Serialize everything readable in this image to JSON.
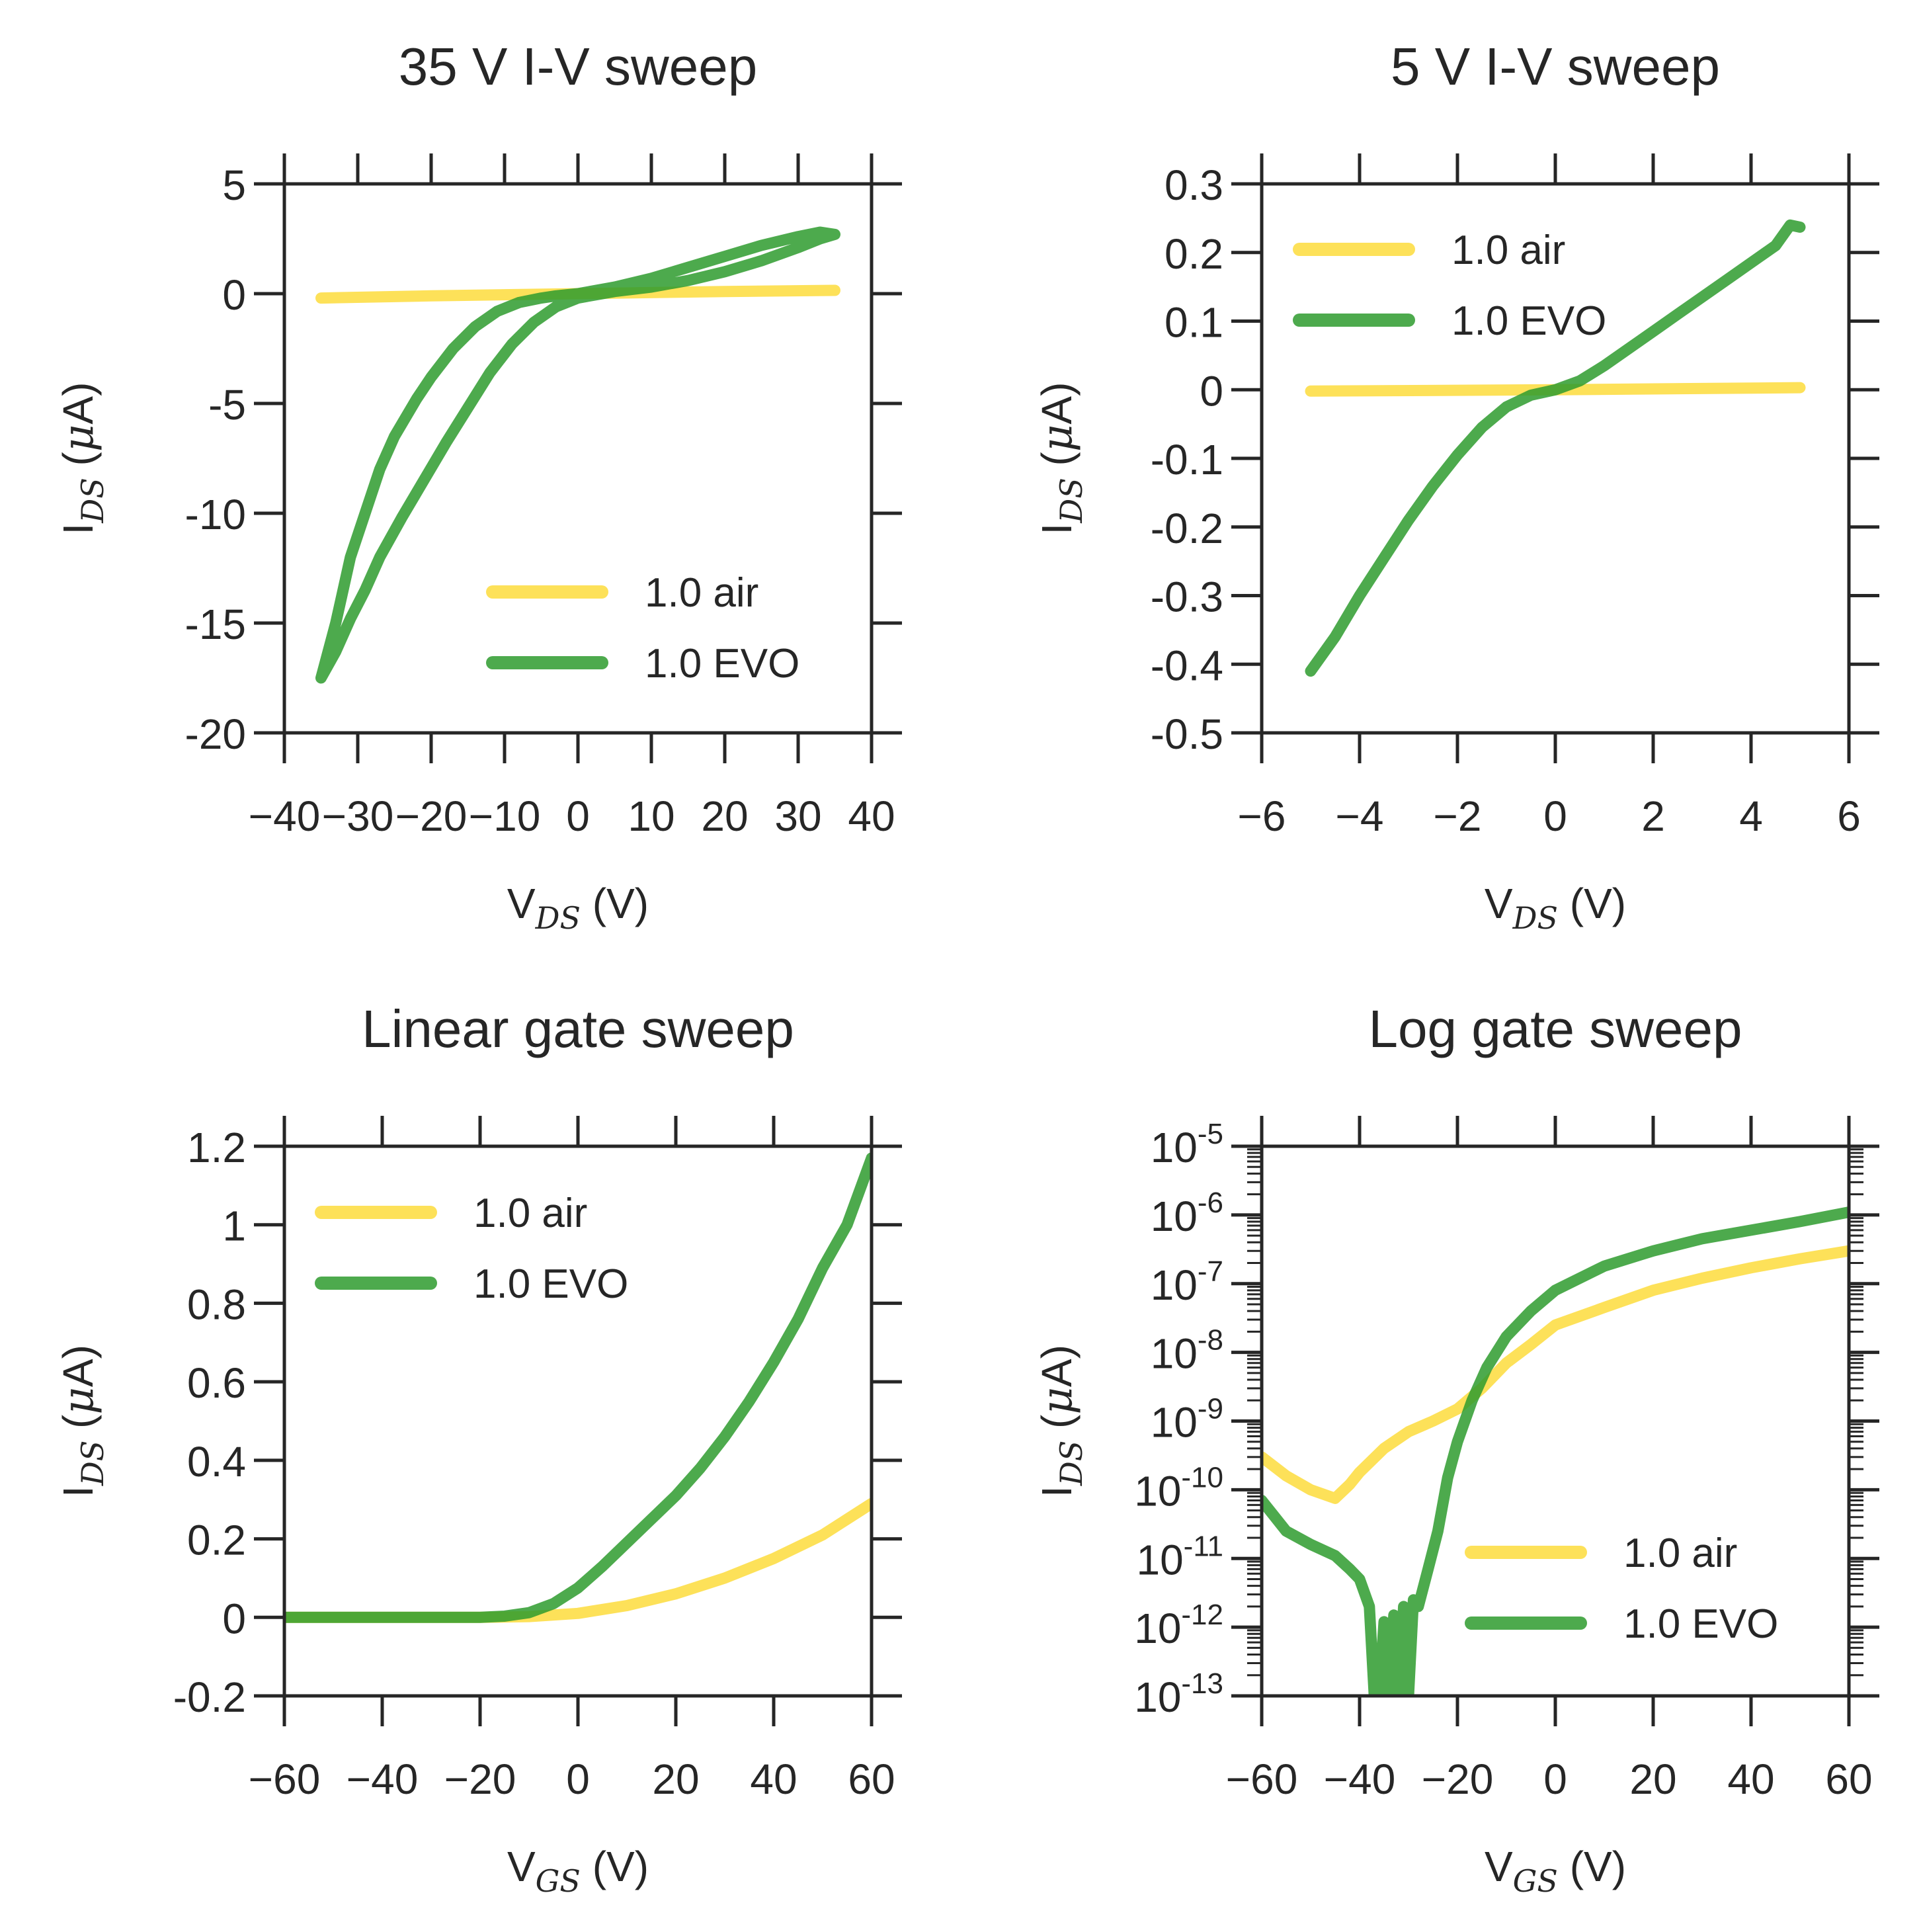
{
  "colors": {
    "air": "#fddc3c",
    "evo": "#2e9b2e",
    "axis": "#262626"
  },
  "chart_data": [
    {
      "type": "line",
      "title": "35 V I-V sweep",
      "xlabel": {
        "main": "V",
        "sub": "DS",
        "unit": " (V)"
      },
      "ylabel": {
        "main": "I",
        "sub": "DS",
        "unit_pre": " (",
        "unit_mu": "μ",
        "unit_post": "A)"
      },
      "xlim": [
        -40,
        40
      ],
      "ylim": [
        -20,
        5
      ],
      "yscale": "linear",
      "xticks": [
        -40,
        -30,
        -20,
        -10,
        0,
        10,
        20,
        30,
        40
      ],
      "xtick_labels": [
        "−40",
        "−30",
        "−20",
        "−10",
        "0",
        "10",
        "20",
        "30",
        "40"
      ],
      "yticks": [
        -20,
        -15,
        -10,
        -5,
        0,
        5
      ],
      "ytick_labels": [
        "-20",
        "-15",
        "-10",
        "-5",
        "0",
        "5"
      ],
      "legend_position": "lower-right",
      "series": [
        {
          "name": "1.0 air",
          "color_key": "air",
          "x": [
            -35,
            -20,
            0,
            20,
            35
          ],
          "y": [
            -0.2,
            -0.1,
            0,
            0.1,
            0.15
          ]
        },
        {
          "name": "1.0 EVO",
          "color_key": "evo",
          "x": [
            -35,
            -33,
            -31,
            -29,
            -27,
            -25,
            -22,
            -20,
            -17,
            -14,
            -11,
            -8,
            -5,
            -3,
            0,
            5,
            10,
            15,
            20,
            25,
            30,
            33,
            35,
            33,
            30,
            25,
            20,
            15,
            10,
            5,
            0,
            -3,
            -6,
            -9,
            -12,
            -15,
            -18,
            -21,
            -24,
            -27,
            -29,
            -31,
            -33,
            -35
          ],
          "y": [
            -17.5,
            -15,
            -12,
            -10,
            -8,
            -6.5,
            -4.8,
            -3.8,
            -2.5,
            -1.5,
            -0.8,
            -0.4,
            -0.2,
            -0.1,
            0,
            0.3,
            0.7,
            1.2,
            1.7,
            2.2,
            2.6,
            2.8,
            2.7,
            2.5,
            2.1,
            1.5,
            1.0,
            0.6,
            0.3,
            0.1,
            -0.2,
            -0.6,
            -1.3,
            -2.3,
            -3.6,
            -5.2,
            -6.8,
            -8.5,
            -10.2,
            -12,
            -13.5,
            -14.8,
            -16.3,
            -17.5
          ]
        }
      ]
    },
    {
      "type": "line",
      "title": "5 V I-V sweep",
      "xlabel": {
        "main": "V",
        "sub": "DS",
        "unit": " (V)"
      },
      "ylabel": {
        "main": "I",
        "sub": "DS",
        "unit_pre": " (",
        "unit_mu": "μ",
        "unit_post": "A)"
      },
      "xlim": [
        -6,
        6
      ],
      "ylim": [
        -0.5,
        0.3
      ],
      "yscale": "linear",
      "xticks": [
        -6,
        -4,
        -2,
        0,
        2,
        4,
        6
      ],
      "xtick_labels": [
        "−6",
        "−4",
        "−2",
        "0",
        "2",
        "4",
        "6"
      ],
      "yticks": [
        -0.5,
        -0.4,
        -0.3,
        -0.2,
        -0.1,
        0,
        0.1,
        0.2,
        0.3
      ],
      "ytick_labels": [
        "-0.5",
        "-0.4",
        "-0.3",
        "-0.2",
        "-0.1",
        "0",
        "0.1",
        "0.2",
        "0.3"
      ],
      "legend_position": "upper-left",
      "series": [
        {
          "name": "1.0 air",
          "color_key": "air",
          "x": [
            -5,
            0,
            5
          ],
          "y": [
            -0.002,
            0,
            0.003
          ]
        },
        {
          "name": "1.0 EVO",
          "color_key": "evo",
          "x": [
            -5,
            -4.5,
            -4,
            -3.5,
            -3,
            -2.5,
            -2,
            -1.5,
            -1,
            -0.5,
            0,
            0.5,
            1,
            1.5,
            2,
            2.5,
            3,
            3.5,
            4,
            4.5,
            4.8,
            5
          ],
          "y": [
            -0.41,
            -0.36,
            -0.3,
            -0.245,
            -0.19,
            -0.14,
            -0.095,
            -0.055,
            -0.025,
            -0.008,
            0,
            0.013,
            0.035,
            0.06,
            0.085,
            0.11,
            0.135,
            0.16,
            0.185,
            0.21,
            0.24,
            0.237
          ]
        }
      ]
    },
    {
      "type": "line",
      "title": "Linear gate sweep",
      "xlabel": {
        "main": "V",
        "sub": "GS",
        "unit": " (V)"
      },
      "ylabel": {
        "main": "I",
        "sub": "DS",
        "unit_pre": " (",
        "unit_mu": "μ",
        "unit_post": "A)"
      },
      "xlim": [
        -60,
        60
      ],
      "ylim": [
        -0.2,
        1.2
      ],
      "yscale": "linear",
      "xticks": [
        -60,
        -40,
        -20,
        0,
        20,
        40,
        60
      ],
      "xtick_labels": [
        "−60",
        "−40",
        "−20",
        "0",
        "20",
        "40",
        "60"
      ],
      "yticks": [
        -0.2,
        0,
        0.2,
        0.4,
        0.6,
        0.8,
        1,
        1.2
      ],
      "ytick_labels": [
        "-0.2",
        "0",
        "0.2",
        "0.4",
        "0.6",
        "0.8",
        "1",
        "1.2"
      ],
      "legend_position": "upper-left",
      "series": [
        {
          "name": "1.0 air",
          "color_key": "air",
          "x": [
            -60,
            -20,
            -10,
            0,
            10,
            20,
            30,
            40,
            50,
            60
          ],
          "y": [
            0,
            0,
            0.002,
            0.01,
            0.03,
            0.06,
            0.1,
            0.15,
            0.21,
            0.29
          ]
        },
        {
          "name": "1.0 EVO",
          "color_key": "evo",
          "x": [
            -60,
            -20,
            -15,
            -10,
            -5,
            0,
            5,
            10,
            15,
            20,
            25,
            30,
            35,
            40,
            45,
            50,
            55,
            60
          ],
          "y": [
            0,
            0,
            0.003,
            0.012,
            0.035,
            0.075,
            0.13,
            0.19,
            0.25,
            0.31,
            0.38,
            0.46,
            0.55,
            0.65,
            0.76,
            0.89,
            1.0,
            1.17
          ]
        }
      ]
    },
    {
      "type": "line",
      "title": "Log gate sweep",
      "xlabel": {
        "main": "V",
        "sub": "GS",
        "unit": " (V)"
      },
      "ylabel": {
        "main": "I",
        "sub": "DS",
        "unit_pre": " (",
        "unit_mu": "μ",
        "unit_post": "A)"
      },
      "xlim": [
        -60,
        60
      ],
      "ylim": [
        1e-13,
        1e-05
      ],
      "yscale": "log",
      "xticks": [
        -60,
        -40,
        -20,
        0,
        20,
        40,
        60
      ],
      "xtick_labels": [
        "−60",
        "−40",
        "−20",
        "0",
        "20",
        "40",
        "60"
      ],
      "yticks": [
        1e-13,
        1e-12,
        1e-11,
        1e-10,
        1e-09,
        1e-08,
        1e-07,
        1e-06,
        1e-05
      ],
      "ytick_labels": [
        {
          "base": "10",
          "exp": "-13"
        },
        {
          "base": "10",
          "exp": "-12"
        },
        {
          "base": "10",
          "exp": "-11"
        },
        {
          "base": "10",
          "exp": "-10"
        },
        {
          "base": "10",
          "exp": "-9"
        },
        {
          "base": "10",
          "exp": "-8"
        },
        {
          "base": "10",
          "exp": "-7"
        },
        {
          "base": "10",
          "exp": "-6"
        },
        {
          "base": "10",
          "exp": "-5"
        }
      ],
      "legend_position": "lower-right",
      "series": [
        {
          "name": "1.0 air",
          "color_key": "air",
          "x": [
            -60,
            -55,
            -50,
            -45,
            -42,
            -40,
            -35,
            -30,
            -25,
            -20,
            -15,
            -10,
            -5,
            0,
            10,
            20,
            30,
            40,
            50,
            60
          ],
          "y": [
            3e-10,
            1.6e-10,
            1e-10,
            7.5e-11,
            1.2e-10,
            1.8e-10,
            4e-10,
            7e-10,
            1e-09,
            1.5e-09,
            3e-09,
            7e-09,
            1.3e-08,
            2.5e-08,
            4.5e-08,
            8e-08,
            1.2e-07,
            1.7e-07,
            2.3e-07,
            3e-07
          ]
        },
        {
          "name": "1.0 EVO",
          "color_key": "evo",
          "x": [
            -60,
            -55,
            -50,
            -45,
            -42,
            -40,
            -38,
            -37,
            -36,
            -35,
            -34,
            -33,
            -32,
            -31,
            -30,
            -29,
            -28,
            -26,
            -24,
            -22,
            -20,
            -17,
            -14,
            -10,
            -5,
            0,
            10,
            20,
            30,
            40,
            50,
            60
          ],
          "y": [
            7e-11,
            2.5e-11,
            1.6e-11,
            1.1e-11,
            7e-12,
            5e-12,
            2e-12,
            1e-13,
            1e-13,
            1.2e-12,
            1e-13,
            1.5e-12,
            1e-13,
            2e-12,
            1e-13,
            2.5e-12,
            2e-12,
            7e-12,
            2.5e-11,
            1.5e-10,
            5e-10,
            2e-09,
            6e-09,
            1.7e-08,
            4e-08,
            8e-08,
            1.8e-07,
            3e-07,
            4.5e-07,
            6e-07,
            8e-07,
            1.1e-06
          ]
        }
      ]
    }
  ]
}
